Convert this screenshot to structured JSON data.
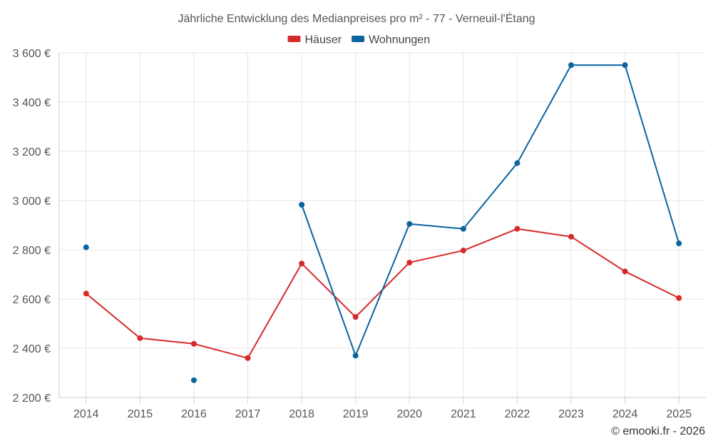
{
  "chart_data": {
    "type": "line",
    "title": "Jährliche Entwicklung des Medianpreises pro m² - 77 - Verneuil-l'Étang",
    "categories": [
      "2014",
      "2015",
      "2016",
      "2017",
      "2018",
      "2019",
      "2020",
      "2021",
      "2022",
      "2023",
      "2024",
      "2025"
    ],
    "series": [
      {
        "name": "Häuser",
        "color": "#d62a2a",
        "values": [
          2622,
          2441,
          2418,
          2360,
          2744,
          2527,
          2748,
          2797,
          2885,
          2853,
          2712,
          2604
        ]
      },
      {
        "name": "Wohnungen",
        "color": "#0a64a0",
        "values": [
          2810,
          null,
          2270,
          null,
          2983,
          2370,
          2905,
          2885,
          3152,
          3550,
          3550,
          2826
        ]
      }
    ],
    "ylim": [
      2200,
      3600
    ],
    "yticks": [
      2200,
      2400,
      2600,
      2800,
      3000,
      3200,
      3400,
      3600
    ],
    "ytick_labels": [
      "2 200 €",
      "2 400 €",
      "2 600 €",
      "2 800 €",
      "3 000 €",
      "3 200 €",
      "3 400 €",
      "3 600 €"
    ],
    "grid": true,
    "legend_position": "top-center",
    "xlabel": "",
    "ylabel": ""
  },
  "credit": "© emooki.fr - 2026"
}
